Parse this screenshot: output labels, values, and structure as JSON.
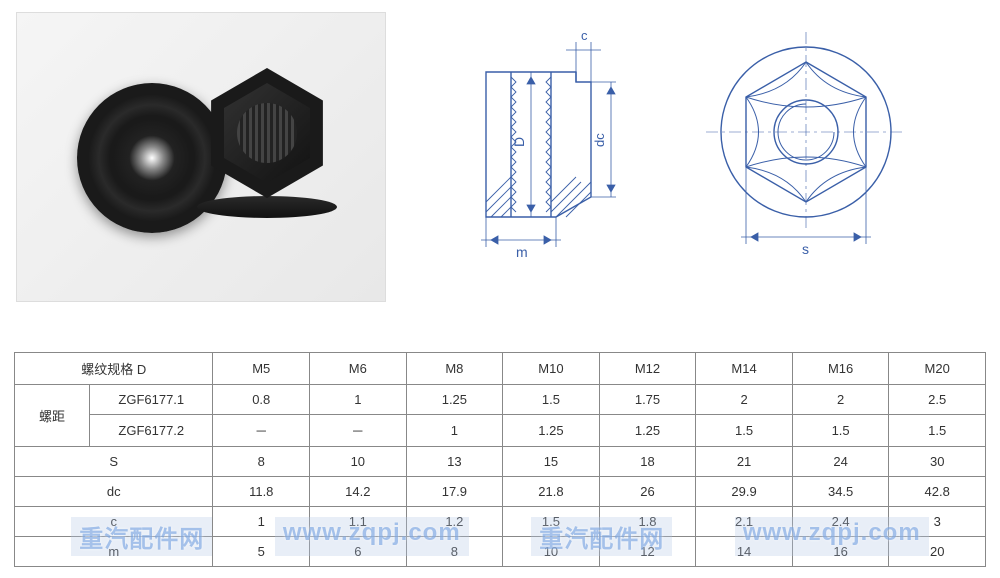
{
  "drawing": {
    "stroke": "#3a5fa8",
    "stroke_width": 1.4,
    "thin_stroke": "#3a5fa8",
    "dim_labels": {
      "c": "c",
      "D": "D",
      "dc": "dc",
      "m": "m",
      "s": "s"
    }
  },
  "table": {
    "header_row": {
      "label": "螺纹规格 D",
      "sizes": [
        "M5",
        "M6",
        "M8",
        "M10",
        "M12",
        "M14",
        "M16",
        "M20"
      ]
    },
    "pitch_label": "螺距",
    "rows": [
      {
        "label": "ZGF6177.1",
        "values": [
          "0.8",
          "1",
          "1.25",
          "1.5",
          "1.75",
          "2",
          "2",
          "2.5"
        ]
      },
      {
        "label": "ZGF6177.2",
        "values": [
          "－",
          "－",
          "1",
          "1.25",
          "1.25",
          "1.5",
          "1.5",
          "1.5"
        ]
      }
    ],
    "dim_rows": [
      {
        "label": "S",
        "values": [
          "8",
          "10",
          "13",
          "15",
          "18",
          "21",
          "24",
          "30"
        ]
      },
      {
        "label": "dc",
        "values": [
          "11.8",
          "14.2",
          "17.9",
          "21.8",
          "26",
          "29.9",
          "34.5",
          "42.8"
        ]
      },
      {
        "label": "c",
        "values": [
          "1",
          "1.1",
          "1.2",
          "1.5",
          "1.8",
          "2.1",
          "2.4",
          "3"
        ]
      },
      {
        "label": "m",
        "values": [
          "5",
          "6",
          "8",
          "10",
          "12",
          "14",
          "16",
          "20"
        ]
      }
    ],
    "border_color": "#888888",
    "text_color": "#333333",
    "font_size": 13
  },
  "watermark": {
    "text1": "重汽配件网",
    "text2": "www.zqpj.com",
    "color": "rgba(100,150,220,0.55)"
  }
}
